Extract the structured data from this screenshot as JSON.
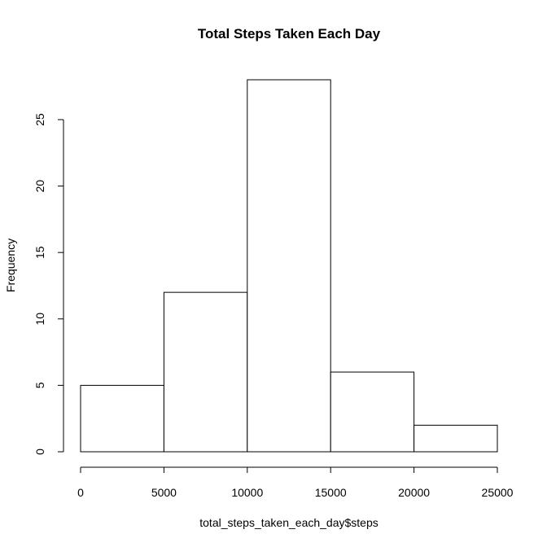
{
  "chart_data": {
    "type": "bar",
    "title": "Total Steps Taken Each Day",
    "xlabel": "total_steps_taken_each_day$steps",
    "ylabel": "Frequency",
    "bins": [
      {
        "from": 0,
        "to": 5000,
        "count": 5
      },
      {
        "from": 5000,
        "to": 10000,
        "count": 12
      },
      {
        "from": 10000,
        "to": 15000,
        "count": 28
      },
      {
        "from": 15000,
        "to": 20000,
        "count": 6
      },
      {
        "from": 20000,
        "to": 25000,
        "count": 2
      }
    ],
    "xlim": [
      0,
      25000
    ],
    "ylim": [
      0,
      28
    ],
    "x_ticks": [
      0,
      5000,
      10000,
      15000,
      20000,
      25000
    ],
    "y_ticks": [
      0,
      5,
      10,
      15,
      20,
      25
    ],
    "grid": false,
    "legend": "none",
    "colors": {
      "bar_fill": "#ffffff",
      "bar_stroke": "#000000"
    }
  }
}
